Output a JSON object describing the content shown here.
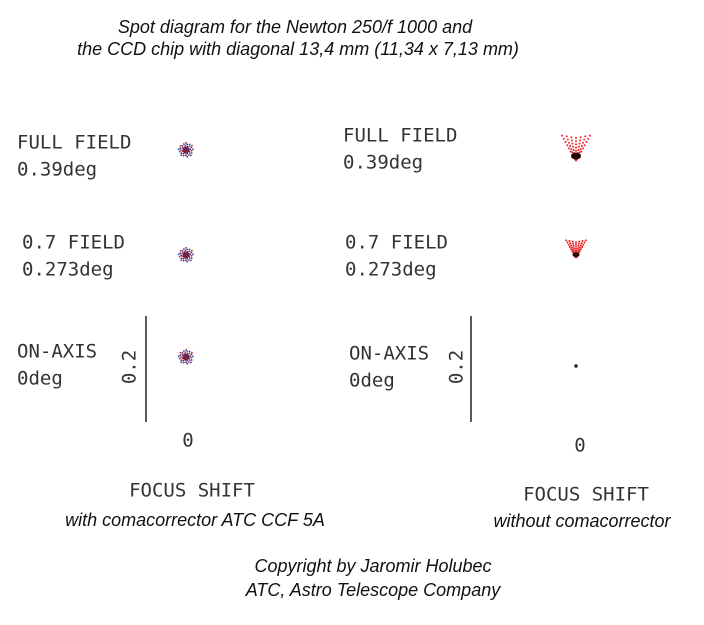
{
  "title": [
    "Spot diagram for the Newton 250/f 1000 and",
    "the CCD chip with diagonal 13,4 mm (11,34 x 7,13 mm)"
  ],
  "panels": [
    {
      "fields": [
        {
          "label": "FULL FIELD",
          "angle": "0.39deg"
        },
        {
          "label": "0.7 FIELD",
          "angle": "0.273deg"
        },
        {
          "label": "ON-AXIS",
          "angle": "0deg"
        }
      ],
      "scale": "0.2",
      "zero": "0",
      "axis_label": "FOCUS SHIFT",
      "caption": "with comacorrector ATC CCF 5A"
    },
    {
      "fields": [
        {
          "label": "FULL FIELD",
          "angle": "0.39deg"
        },
        {
          "label": "0.7 FIELD",
          "angle": "0.273deg"
        },
        {
          "label": "ON-AXIS",
          "angle": "0deg"
        }
      ],
      "scale": "0.2",
      "zero": "0",
      "axis_label": "FOCUS SHIFT",
      "caption": "without comacorrector"
    }
  ],
  "copyright": [
    "Copyright by Jaromir Holubec",
    "ATC, Astro Telescope Company"
  ]
}
